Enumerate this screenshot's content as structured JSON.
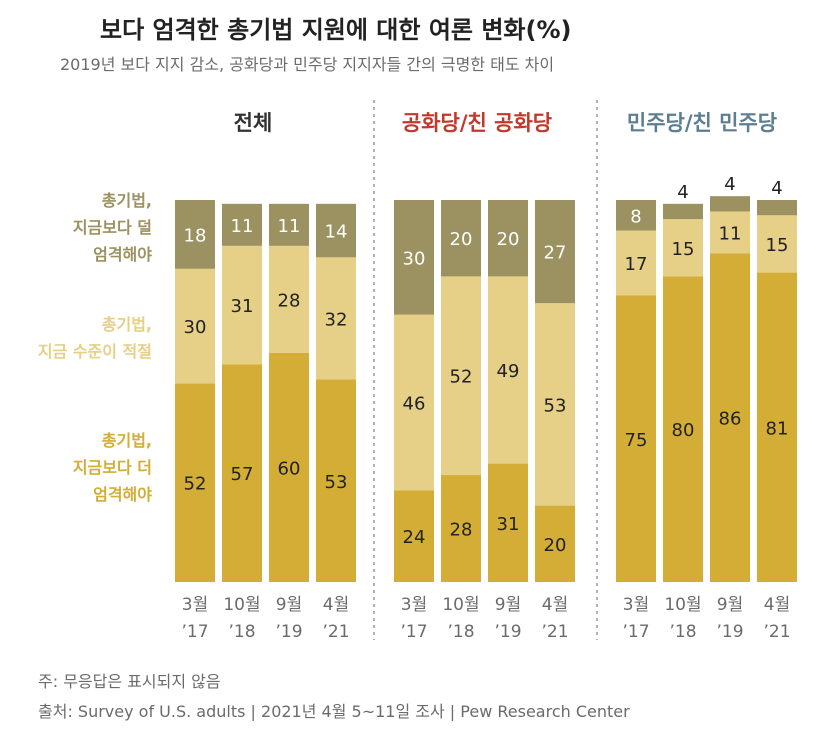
{
  "title": "보다 엄격한 총기법 지원에 대한 여론 변화(%)",
  "subtitle": "2019년 보다 지지 감소, 공화당과 민주당 지지자들 간의 극명한 태도 차이",
  "legend": {
    "less_strict": [
      "총기법,",
      "지금보다 덜",
      "엄격해야"
    ],
    "about_right": [
      "총기법,",
      "지금 수준이 적절"
    ],
    "more_strict": [
      "총기법,",
      "지금보다 더",
      "엄격해야"
    ]
  },
  "note": "주: 무응답은 표시되지 않음",
  "source": "출처: Survey of U.S. adults | 2021년 4월 5~11일 조사 | Pew Research Center",
  "colors": {
    "less_strict": "#9c9160",
    "about_right": "#e6cf86",
    "more_strict": "#d3ad35",
    "total_title": "#333333",
    "rep_title": "#c0392b",
    "dem_title": "#5b7e93",
    "divider": "#999999"
  },
  "chart_data": {
    "type": "bar",
    "stacked": true,
    "categories": [
      [
        "3월",
        "’17"
      ],
      [
        "10월",
        "’18"
      ],
      [
        "9월",
        "’19"
      ],
      [
        "4월",
        "’21"
      ]
    ],
    "series_names": [
      "총기법, 지금보다 더 엄격해야",
      "총기법, 지금 수준이 적절",
      "총기법, 지금보다 덜 엄격해야"
    ],
    "panels": [
      {
        "title": "전체",
        "color_key": "total_title",
        "more_strict": [
          52,
          57,
          60,
          53
        ],
        "about_right": [
          30,
          31,
          28,
          32
        ],
        "less_strict": [
          18,
          11,
          11,
          14
        ]
      },
      {
        "title": "공화당/친 공화당",
        "color_key": "rep_title",
        "more_strict": [
          24,
          28,
          31,
          20
        ],
        "about_right": [
          46,
          52,
          49,
          53
        ],
        "less_strict": [
          30,
          20,
          20,
          27
        ]
      },
      {
        "title": "민주당/친 민주당",
        "color_key": "dem_title",
        "more_strict": [
          75,
          80,
          86,
          81
        ],
        "about_right": [
          17,
          15,
          11,
          15
        ],
        "less_strict": [
          8,
          4,
          4,
          4
        ]
      }
    ],
    "ylim": [
      0,
      100
    ]
  }
}
